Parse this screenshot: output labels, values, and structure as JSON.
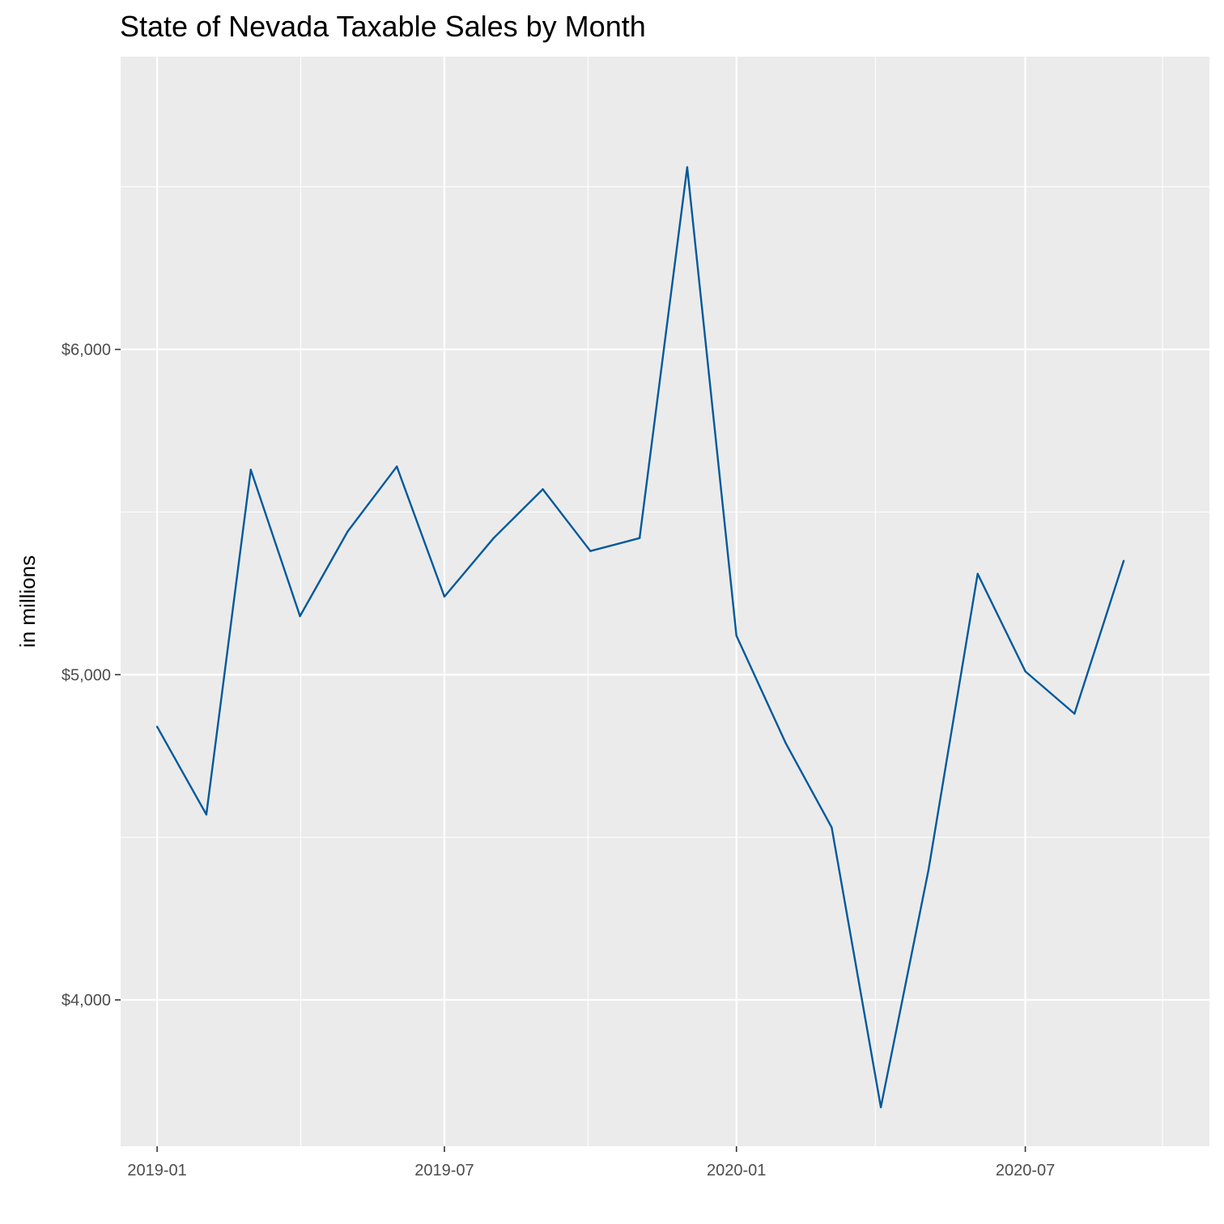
{
  "chart_data": {
    "type": "line",
    "title": "State of Nevada Taxable Sales by Month",
    "xlabel": "",
    "ylabel": "in millions",
    "x": [
      "2019-01",
      "2019-02",
      "2019-03",
      "2019-04",
      "2019-05",
      "2019-06",
      "2019-07",
      "2019-08",
      "2019-09",
      "2019-10",
      "2019-11",
      "2019-12",
      "2020-01",
      "2020-02",
      "2020-03",
      "2020-04",
      "2020-05",
      "2020-06",
      "2020-07",
      "2020-08",
      "2020-09"
    ],
    "series": [
      {
        "values": [
          4840,
          4570,
          5630,
          5180,
          5440,
          5640,
          5240,
          5420,
          5570,
          5380,
          5420,
          6560,
          5120,
          4790,
          4530,
          3670,
          4400,
          5310,
          5010,
          4880,
          5350
        ],
        "color": "#00599C"
      }
    ],
    "xlim": [
      "2018-12-09",
      "2020-10-25"
    ],
    "ylim": [
      3550,
      6900
    ],
    "y_ticks": [
      4000,
      5000,
      6000
    ],
    "y_tick_labels": [
      "$4,000",
      "$5,000",
      "$6,000"
    ],
    "x_ticks": [
      "2019-01",
      "2019-07",
      "2020-01",
      "2020-07"
    ],
    "x_tick_labels": [
      "2019-01",
      "2019-07",
      "2020-01",
      "2020-07"
    ],
    "grid": true,
    "panel_background": "#EBEBEB",
    "grid_color": "#FFFFFF"
  }
}
